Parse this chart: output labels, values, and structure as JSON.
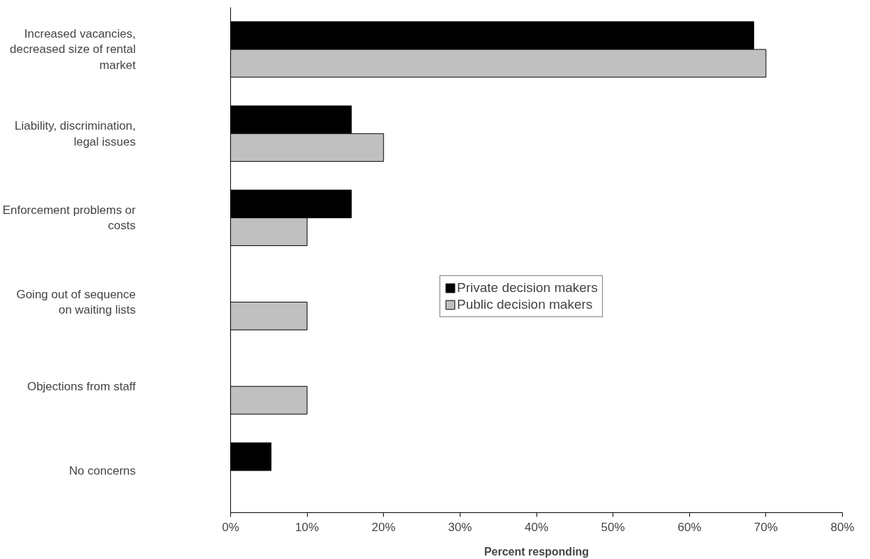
{
  "chart_data": {
    "type": "bar",
    "orientation": "horizontal",
    "xlabel": "Percent responding",
    "categories": [
      "Increased vacancies,\ndecreased size of rental\nmarket",
      "Liability, discrimination,\nlegal issues",
      "Enforcement problems or\ncosts",
      "Going out of sequence\non waiting lists",
      "Objections from staff",
      "No concerns"
    ],
    "series": [
      {
        "name": "Private decision makers",
        "color": "#000000",
        "values": [
          68.4,
          15.8,
          15.8,
          null,
          null,
          5.3
        ]
      },
      {
        "name": "Public decision makers",
        "color": "#c0c0c0",
        "values": [
          70,
          20,
          10,
          10,
          10,
          null
        ]
      }
    ],
    "xlim": [
      0,
      80
    ],
    "xticks": [
      {
        "value": 0,
        "label": "0%"
      },
      {
        "value": 10,
        "label": "10%"
      },
      {
        "value": 20,
        "label": "20%"
      },
      {
        "value": 30,
        "label": "30%"
      },
      {
        "value": 40,
        "label": "40%"
      },
      {
        "value": 50,
        "label": "50%"
      },
      {
        "value": 60,
        "label": "60%"
      },
      {
        "value": 70,
        "label": "70%"
      },
      {
        "value": 80,
        "label": "80%"
      }
    ],
    "grid": false,
    "legend": "center"
  }
}
